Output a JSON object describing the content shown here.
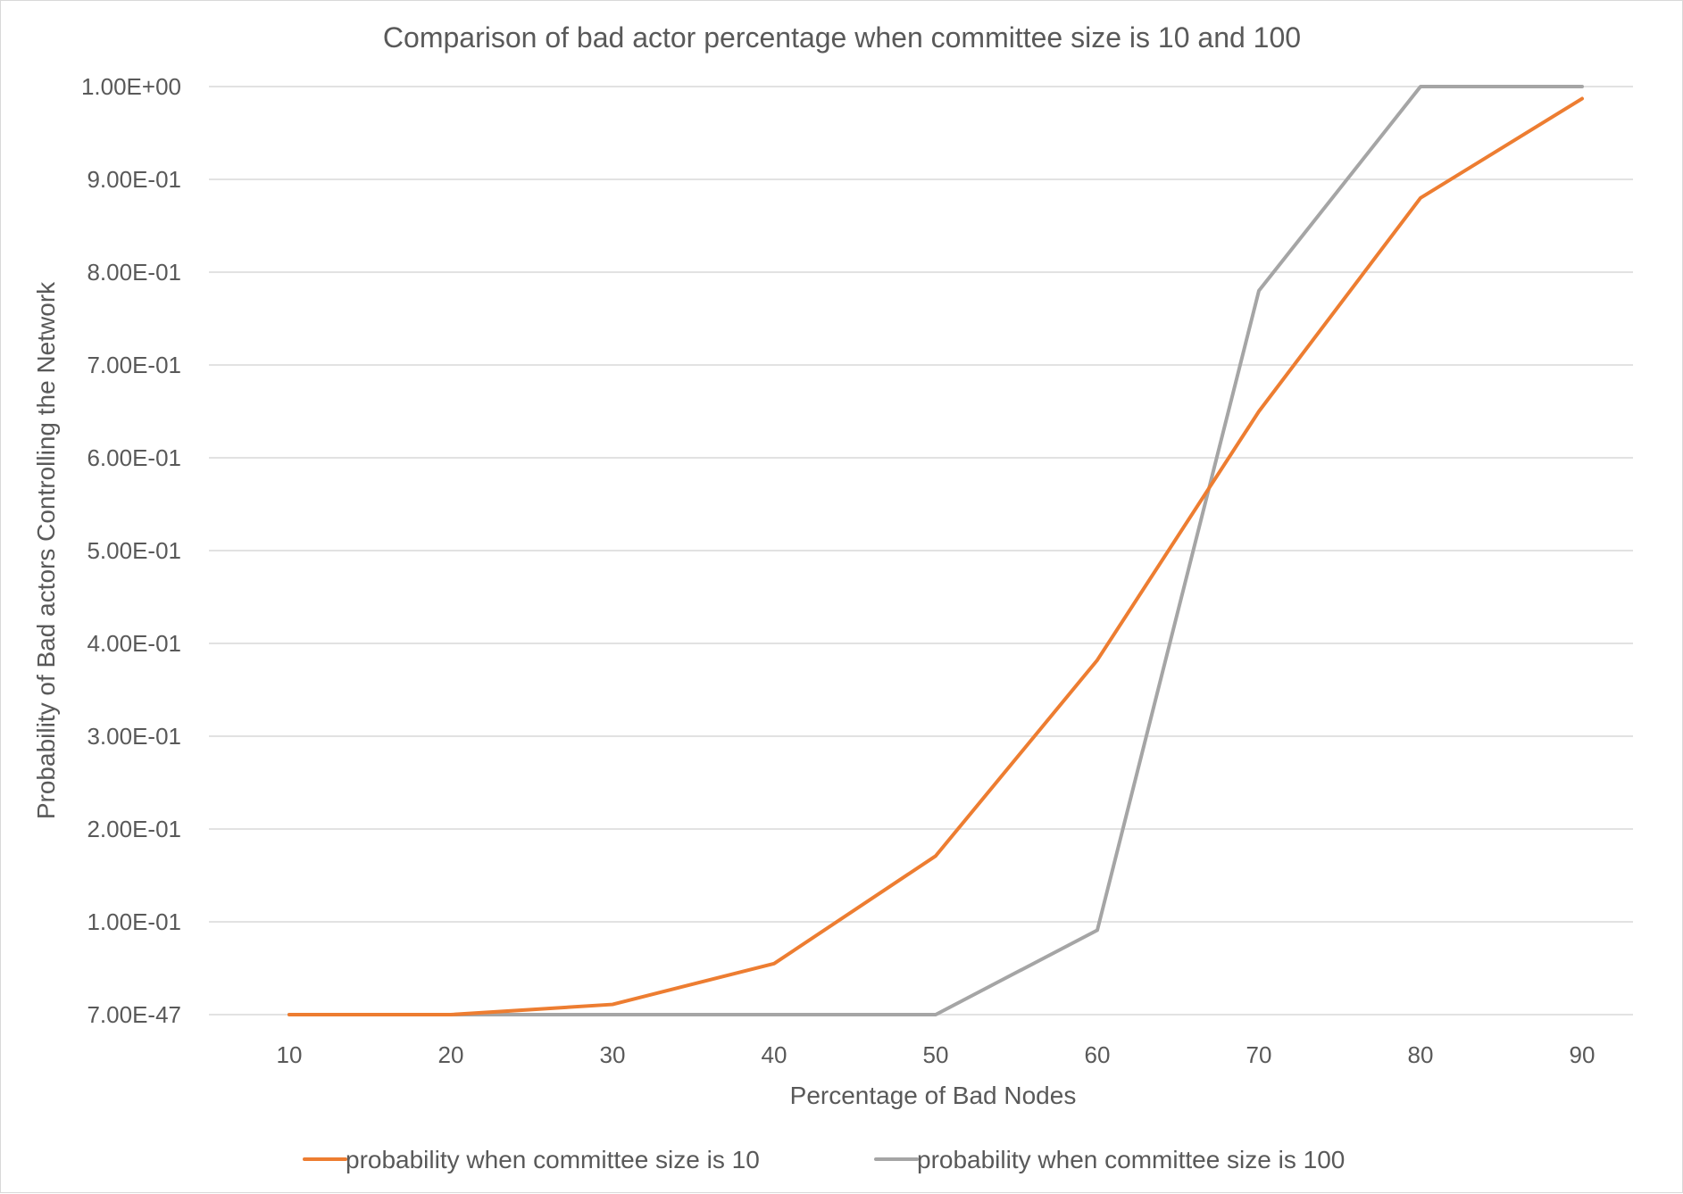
{
  "chart_data": {
    "type": "line",
    "title": "Comparison of bad actor percentage when committee size is 10 and 100",
    "xlabel": "Percentage of Bad Nodes",
    "ylabel": "Probability of Bad actors Controlling the Network",
    "x": [
      10,
      20,
      30,
      40,
      50,
      60,
      70,
      80,
      90
    ],
    "x_tick_labels": [
      "10",
      "20",
      "30",
      "40",
      "50",
      "60",
      "70",
      "80",
      "90"
    ],
    "y_ticks": [
      0,
      0.1,
      0.2,
      0.3,
      0.4,
      0.5,
      0.6,
      0.7,
      0.8,
      0.9,
      1.0
    ],
    "y_tick_labels": [
      "7.00E-47",
      "1.00E-01",
      "2.00E-01",
      "3.00E-01",
      "4.00E-01",
      "5.00E-01",
      "6.00E-01",
      "7.00E-01",
      "8.00E-01",
      "9.00E-01",
      "1.00E+00"
    ],
    "ylim": [
      0,
      1.0
    ],
    "grid": true,
    "legend_position": "bottom",
    "series": [
      {
        "name": "probability when committee size is 10",
        "color": "#ed7d31",
        "values": [
          0.0,
          0.0,
          0.011,
          0.055,
          0.171,
          0.382,
          0.65,
          0.88,
          0.987
        ]
      },
      {
        "name": "probability when committee size is 100",
        "color": "#a5a5a5",
        "values": [
          0.0,
          0.0,
          0.0,
          0.0,
          0.0,
          0.091,
          0.78,
          1.0,
          1.0
        ]
      }
    ]
  }
}
